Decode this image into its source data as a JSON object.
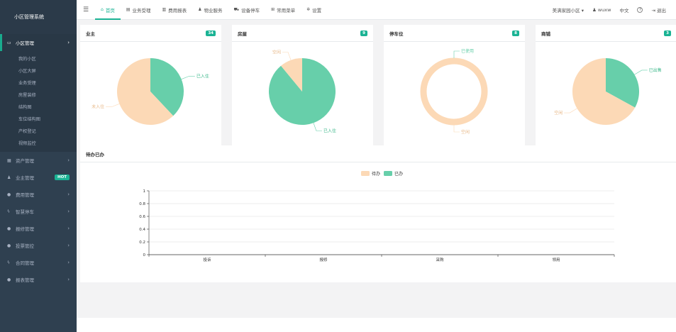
{
  "sidebar": {
    "brand": "小区管理系统",
    "menus": [
      {
        "label": "小区管理",
        "icon": "monitor-icon",
        "glyph": "▭",
        "active": true
      },
      {
        "label": "资产管理",
        "icon": "grid-icon",
        "glyph": "▦"
      },
      {
        "label": "业主管理",
        "icon": "user-icon",
        "glyph": "♟",
        "hot": "HOT"
      },
      {
        "label": "费用管理",
        "icon": "circle-icon",
        "glyph": "●"
      },
      {
        "label": "智慧停车",
        "icon": "bolt-icon",
        "glyph": "ϟ"
      },
      {
        "label": "报修管理",
        "icon": "circle-icon",
        "glyph": "●"
      },
      {
        "label": "投票管控",
        "icon": "circle-icon",
        "glyph": "●"
      },
      {
        "label": "合同管理",
        "icon": "bolt-icon",
        "glyph": "ϟ"
      },
      {
        "label": "报表管理",
        "icon": "circle-icon",
        "glyph": "●"
      }
    ],
    "submenu": [
      "我的小区",
      "小区大屏",
      "业务受理",
      "房屋装修",
      "结构图",
      "车位结构图",
      "产权登记",
      "视频监控"
    ]
  },
  "topbar": {
    "tabs": [
      {
        "label": "首页",
        "icon": "home-icon",
        "glyph": "⌂",
        "active": true
      },
      {
        "label": "业务受理",
        "icon": "table-icon",
        "glyph": "▤"
      },
      {
        "label": "费用报表",
        "icon": "chart-icon",
        "glyph": "▥"
      },
      {
        "label": "物业服务",
        "icon": "users-icon",
        "glyph": "♟"
      },
      {
        "label": "设备停车",
        "icon": "car-icon",
        "glyph": "⛟"
      },
      {
        "label": "常用菜单",
        "icon": "sitemap-icon",
        "glyph": "⊞"
      },
      {
        "label": "设置",
        "icon": "gear-icon",
        "glyph": "✲"
      }
    ],
    "community": "美满家园小区",
    "user": "wuxw",
    "lang": "中文",
    "help": "?",
    "logout": "退出"
  },
  "cards": [
    {
      "title": "业主",
      "count": "34"
    },
    {
      "title": "房屋",
      "count": "9"
    },
    {
      "title": "停车位",
      "count": "8"
    },
    {
      "title": "商铺",
      "count": "3"
    }
  ],
  "colors": {
    "green": "#67cfaa",
    "peach": "#fcd9b6",
    "accent": "#1ab394"
  },
  "chart_data": [
    {
      "type": "pie",
      "title": "业主",
      "slices": [
        {
          "name": "已入住",
          "value": 38,
          "color": "#67cfaa"
        },
        {
          "name": "未入住",
          "value": 62,
          "color": "#fcd9b6"
        }
      ]
    },
    {
      "type": "pie",
      "title": "房屋",
      "slices": [
        {
          "name": "已入住",
          "value": 89,
          "color": "#67cfaa"
        },
        {
          "name": "空闲",
          "value": 11,
          "color": "#fcd9b6"
        }
      ]
    },
    {
      "type": "pie",
      "title": "停车位",
      "style": "ring",
      "slices": [
        {
          "name": "已使用",
          "value": 0,
          "color": "#67cfaa"
        },
        {
          "name": "空闲",
          "value": 100,
          "color": "#fcd9b6"
        }
      ]
    },
    {
      "type": "pie",
      "title": "商铺",
      "slices": [
        {
          "name": "已出售",
          "value": 33,
          "color": "#67cfaa"
        },
        {
          "name": "空闲",
          "value": 67,
          "color": "#fcd9b6"
        }
      ]
    },
    {
      "type": "bar",
      "title": "待办已办",
      "categories": [
        "投诉",
        "报修",
        "采购",
        "领用"
      ],
      "series": [
        {
          "name": "待办",
          "values": [
            0,
            0,
            0,
            0
          ],
          "color": "#fcd9b6"
        },
        {
          "name": "已办",
          "values": [
            0,
            0,
            0,
            0
          ],
          "color": "#67cfaa"
        }
      ],
      "ylim": [
        0,
        1
      ],
      "yticks": [
        "0",
        "0.2",
        "0.4",
        "0.6",
        "0.8",
        "1"
      ],
      "legend": "top-center"
    }
  ]
}
